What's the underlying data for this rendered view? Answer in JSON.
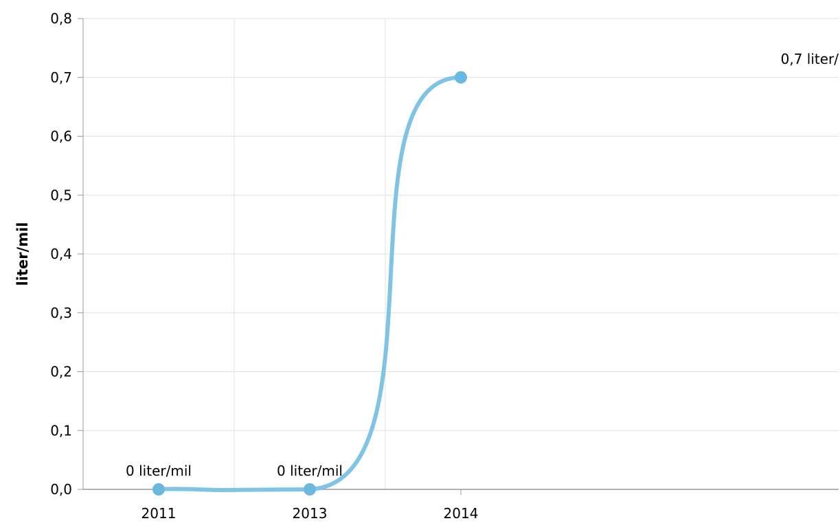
{
  "chart_data": {
    "type": "line",
    "title": "",
    "xlabel": "",
    "ylabel": "liter/mil",
    "categories": [
      "2011",
      "2013",
      "2014"
    ],
    "series": [
      {
        "values": [
          0,
          0,
          0.7
        ],
        "data_labels": [
          "0 liter/mil",
          "0 liter/mil",
          "0,7 liter/"
        ]
      }
    ],
    "ylim": [
      0,
      0.8
    ],
    "y_ticks": [
      "0,0",
      "0,1",
      "0,2",
      "0,3",
      "0,4",
      "0,5",
      "0,6",
      "0,7",
      "0,8"
    ],
    "grid": true,
    "legend": "none",
    "colors": {
      "line": "#7fc4e4",
      "marker": "#6ab8e0",
      "grid": "#e0e0e0",
      "axis": "#999999"
    }
  }
}
